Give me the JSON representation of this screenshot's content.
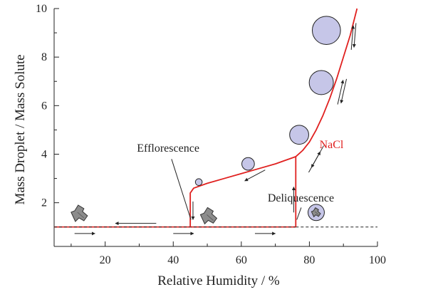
{
  "chart_data": {
    "type": "line",
    "title": "",
    "xlabel": "Relative Humidity / %",
    "ylabel": "Mass Droplet / Mass Solute",
    "xlim": [
      5,
      100
    ],
    "ylim": [
      0.2,
      10
    ],
    "xticks": [
      20,
      40,
      60,
      80,
      100
    ],
    "xminor": [
      10,
      30,
      50,
      70,
      90
    ],
    "yticks": [
      2,
      4,
      6,
      8,
      10
    ],
    "yminor": [
      1,
      3,
      5,
      7,
      9
    ],
    "grid": false,
    "baseline_value": 1.0,
    "series": [
      {
        "name": "NaCl",
        "color": "#e0201f",
        "x": [
          45,
          45,
          46,
          50,
          55,
          60,
          65,
          70,
          73,
          75,
          76,
          78,
          80,
          82,
          84,
          86,
          88,
          90,
          92,
          94
        ],
        "y": [
          1.0,
          2.4,
          2.6,
          2.8,
          3.0,
          3.2,
          3.4,
          3.6,
          3.75,
          3.85,
          3.9,
          4.15,
          4.5,
          5.0,
          5.6,
          6.3,
          7.1,
          8.0,
          8.9,
          10.0
        ]
      }
    ],
    "deliquescence_jump": {
      "x": 76,
      "y_from": 1.0,
      "y_to": 3.9
    },
    "efflorescence_drop": {
      "x": 45,
      "y_from": 2.4,
      "y_to": 1.0
    },
    "annotations": [
      {
        "text": "Efflorescence",
        "x": 38.5,
        "y": 4.1
      },
      {
        "text": "Deliquescence",
        "x": 77.5,
        "y": 2.05
      },
      {
        "text": "NaCl",
        "x": 86.5,
        "y": 4.25,
        "color": "#e0201f"
      }
    ],
    "droplets": [
      {
        "x": 47.5,
        "y": 2.85,
        "r": 1.0
      },
      {
        "x": 62,
        "y": 3.6,
        "r": 1.85
      },
      {
        "x": 77,
        "y": 4.8,
        "r": 2.8
      },
      {
        "x": 83.5,
        "y": 6.95,
        "r": 3.55
      },
      {
        "x": 85,
        "y": 9.1,
        "r": 4.15
      },
      {
        "x": 82,
        "y": 1.6,
        "r": 2.4
      }
    ],
    "crystals": [
      {
        "x": 12.5,
        "y": 1.55
      },
      {
        "x": 50.5,
        "y": 1.45
      }
    ],
    "arrows": [
      {
        "x1": 11,
        "y1": 0.73,
        "x2": 17,
        "y2": 0.73
      },
      {
        "x1": 40,
        "y1": 0.73,
        "x2": 46,
        "y2": 0.73
      },
      {
        "x1": 64,
        "y1": 0.73,
        "x2": 70,
        "y2": 0.73
      },
      {
        "x1": 35,
        "y1": 1.15,
        "x2": 23,
        "y2": 1.15
      },
      {
        "x1": 45.8,
        "y1": 2.05,
        "x2": 45.8,
        "y2": 1.3
      },
      {
        "x1": 75.4,
        "y1": 1.6,
        "x2": 75.4,
        "y2": 2.65
      },
      {
        "x1": 67,
        "y1": 3.35,
        "x2": 61,
        "y2": 2.9
      },
      {
        "x1": 79.8,
        "y1": 3.25,
        "x2": 83.2,
        "y2": 4.1
      },
      {
        "x1": 84.2,
        "y1": 4.35,
        "x2": 80.6,
        "y2": 3.45
      },
      {
        "x1": 88.3,
        "y1": 6.05,
        "x2": 89.9,
        "y2": 7.05
      },
      {
        "x1": 90.9,
        "y1": 7.1,
        "x2": 89.3,
        "y2": 6.1
      },
      {
        "x1": 92.3,
        "y1": 8.3,
        "x2": 92.9,
        "y2": 9.3
      },
      {
        "x1": 93.7,
        "y1": 9.4,
        "x2": 93.1,
        "y2": 8.4
      }
    ],
    "pointers": [
      {
        "x1": 39.5,
        "y1": 3.8,
        "x2": 45.2,
        "y2": 1.3
      },
      {
        "x1": 77.6,
        "y1": 1.8,
        "x2": 76.3,
        "y2": 1.3
      }
    ],
    "colors": {
      "curve": "#e0201f",
      "droplet_fill": "#c6c6e8",
      "droplet_stroke": "#222222",
      "crystal_fill": "#8c8c8c",
      "axis": "#222222"
    }
  }
}
